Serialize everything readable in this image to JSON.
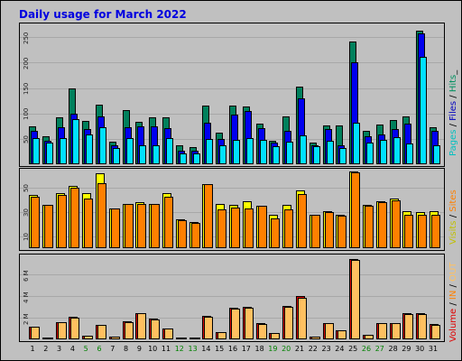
{
  "title": "Daily usage for March 2022",
  "colors": {
    "pages": "#00805c",
    "files": "#0000f0",
    "hits": "#00e0ff",
    "visits": "#ffff00",
    "sites": "#ff8000",
    "kin": "#ff8000",
    "kout": "#ffc060",
    "volume": "#e00000"
  },
  "legends": {
    "hits_panel": [
      {
        "text": "Pages",
        "color": "#00c0c0"
      },
      {
        "text": " / ",
        "color": "#000000"
      },
      {
        "text": "Files",
        "color": "#0000c0"
      },
      {
        "text": " / ",
        "color": "#000000"
      },
      {
        "text": "Hits",
        "color": "#009060"
      },
      {
        "text": "_",
        "color": "#000000"
      }
    ],
    "visits_panel": [
      {
        "text": "Visits",
        "color": "#c0c000"
      },
      {
        "text": " / ",
        "color": "#000000"
      },
      {
        "text": "Sites",
        "color": "#ff8000"
      }
    ],
    "volume_panel": [
      {
        "text": "Volume",
        "color": "#e00000"
      },
      {
        "text": " / ",
        "color": "#000000"
      },
      {
        "text": "IN",
        "color": "#ff8000"
      },
      {
        "text": " / ",
        "color": "#000000"
      },
      {
        "text": "OUT",
        "color": "#ffc060"
      }
    ]
  },
  "chart_data": [
    {
      "type": "bar",
      "title": "Daily usage for March 2022",
      "ylim": [
        0,
        270
      ],
      "yticks": [
        "50",
        "100",
        "150",
        "200",
        "250"
      ],
      "categories": [
        "1",
        "2",
        "3",
        "4",
        "5",
        "6",
        "7",
        "8",
        "9",
        "10",
        "11",
        "12",
        "13",
        "14",
        "15",
        "16",
        "17",
        "18",
        "19",
        "20",
        "21",
        "22",
        "23",
        "24",
        "25",
        "26",
        "27",
        "28",
        "29",
        "30",
        "31"
      ],
      "series": [
        {
          "name": "Hits",
          "values": [
            75,
            55,
            92,
            150,
            86,
            118,
            45,
            107,
            84,
            92,
            92,
            38,
            34,
            116,
            62,
            116,
            114,
            80,
            47,
            95,
            153,
            43,
            76,
            76,
            242,
            65,
            79,
            87,
            94,
            263,
            72
          ]
        },
        {
          "name": "Files",
          "values": [
            65,
            47,
            72,
            100,
            70,
            95,
            38,
            73,
            75,
            75,
            71,
            27,
            26,
            82,
            50,
            97,
            104,
            71,
            42,
            65,
            130,
            38,
            69,
            38,
            200,
            55,
            58,
            70,
            80,
            258,
            65
          ]
        },
        {
          "name": "Pages",
          "values": [
            52,
            42,
            52,
            88,
            58,
            72,
            32,
            52,
            38,
            38,
            52,
            22,
            22,
            50,
            38,
            48,
            52,
            48,
            36,
            44,
            56,
            36,
            47,
            32,
            82,
            42,
            48,
            54,
            40,
            212,
            37
          ]
        }
      ]
    },
    {
      "type": "bar",
      "ylim": [
        0,
        63
      ],
      "yticks": [
        "10",
        "30",
        "50"
      ],
      "categories": [
        "1",
        "2",
        "3",
        "4",
        "5",
        "6",
        "7",
        "8",
        "9",
        "10",
        "11",
        "12",
        "13",
        "14",
        "15",
        "16",
        "17",
        "18",
        "19",
        "20",
        "21",
        "22",
        "23",
        "24",
        "25",
        "26",
        "27",
        "28",
        "29",
        "30",
        "31"
      ],
      "series": [
        {
          "name": "Visits",
          "values": [
            44,
            36,
            46,
            52,
            46,
            62,
            33,
            37,
            38,
            37,
            46,
            24,
            22,
            53,
            37,
            36,
            39,
            35,
            28,
            36,
            48,
            28,
            31,
            28,
            64,
            36,
            39,
            41,
            31,
            30,
            31
          ]
        },
        {
          "name": "Sites",
          "values": [
            43,
            36,
            44,
            50,
            41,
            54,
            33,
            37,
            37,
            37,
            43,
            23,
            21,
            53,
            32,
            34,
            33,
            35,
            25,
            32,
            45,
            28,
            30,
            27,
            63,
            35,
            38,
            40,
            28,
            28,
            28
          ]
        }
      ]
    },
    {
      "type": "bar",
      "ylim": [
        0,
        7500000
      ],
      "yticks": [
        "2 M",
        "4 M",
        "6 M"
      ],
      "categories": [
        "1",
        "2",
        "3",
        "4",
        "5",
        "6",
        "7",
        "8",
        "9",
        "10",
        "11",
        "12",
        "13",
        "14",
        "15",
        "16",
        "17",
        "18",
        "19",
        "20",
        "21",
        "22",
        "23",
        "24",
        "25",
        "26",
        "27",
        "28",
        "29",
        "30",
        "31"
      ],
      "series": [
        {
          "name": "Volume",
          "values": [
            1200000,
            200000,
            1600000,
            2100000,
            300000,
            1300000,
            250000,
            1700000,
            2400000,
            1900000,
            1000000,
            150000,
            150000,
            2200000,
            700000,
            2900000,
            3000000,
            1500000,
            600000,
            3100000,
            4000000,
            250000,
            1500000,
            800000,
            7400000,
            450000,
            1500000,
            1500000,
            2400000,
            2400000,
            1400000
          ]
        },
        {
          "name": "IN",
          "values": [
            1200000,
            200000,
            1600000,
            2000000,
            300000,
            1300000,
            250000,
            1600000,
            2400000,
            1800000,
            1000000,
            150000,
            150000,
            2100000,
            700000,
            2800000,
            2900000,
            1400000,
            600000,
            3000000,
            3800000,
            250000,
            1500000,
            800000,
            7300000,
            450000,
            1500000,
            1500000,
            2300000,
            2300000,
            1300000
          ]
        }
      ]
    }
  ],
  "day_label_color_weekend": "#008000",
  "weekend_days": [
    5,
    6,
    12,
    13,
    19,
    20,
    26,
    27
  ]
}
